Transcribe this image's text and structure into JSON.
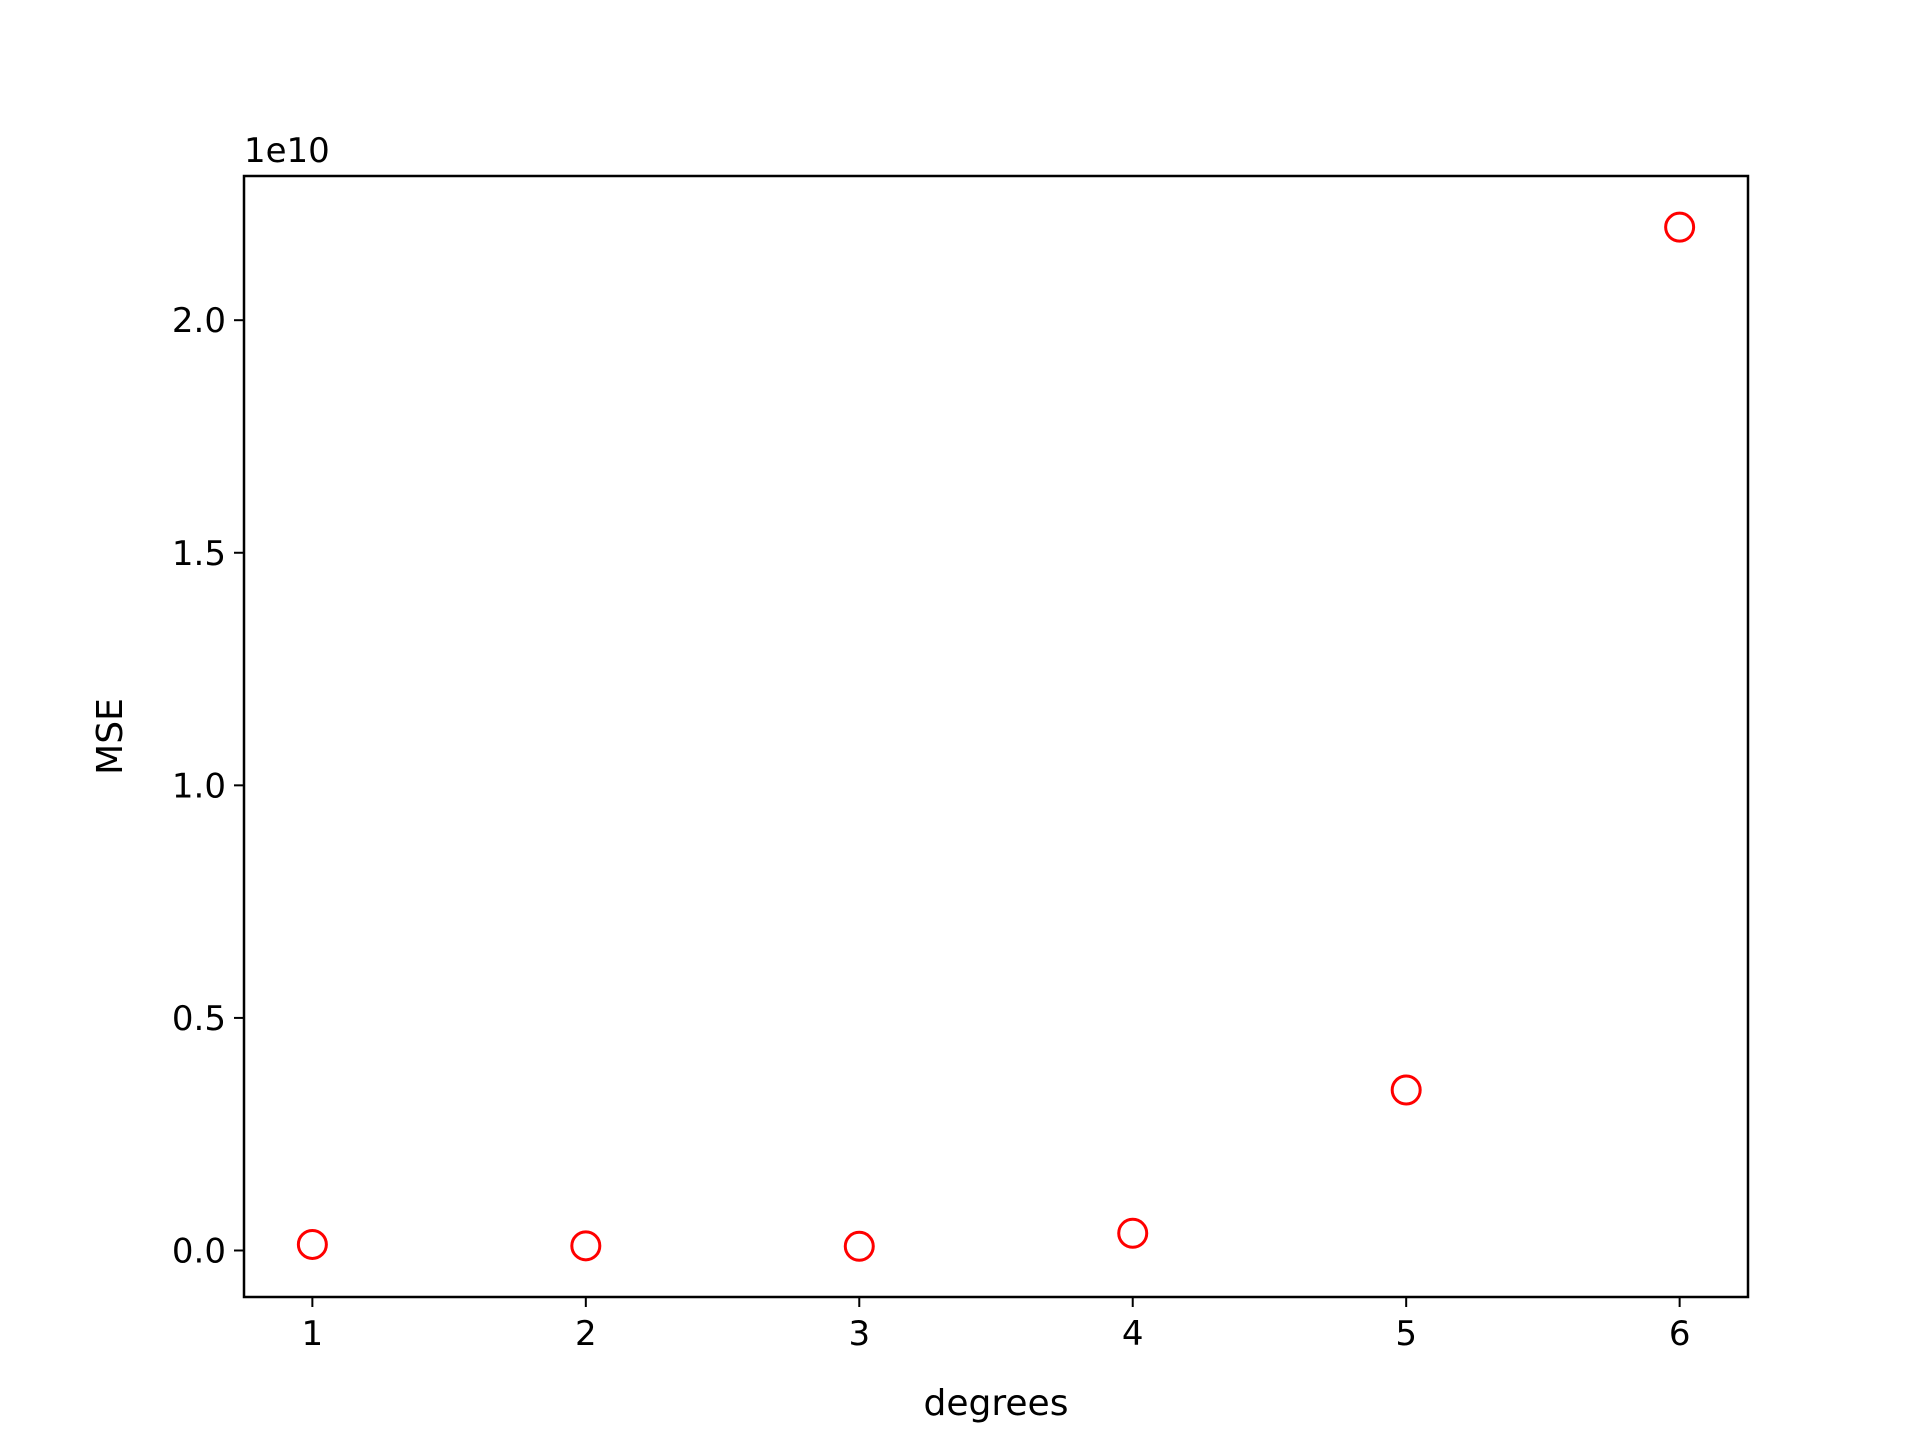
{
  "chart_data": {
    "type": "scatter",
    "xlabel": "degrees",
    "ylabel": "MSE",
    "y_offset_text": "1e10",
    "x": [
      1,
      2,
      3,
      4,
      5,
      6
    ],
    "y": [
      0.013,
      0.01,
      0.009,
      0.037,
      0.345,
      2.2
    ],
    "y_scale_multiplier": 10000000000,
    "xlim": [
      0.75,
      6.25
    ],
    "ylim": [
      -0.1,
      2.31
    ],
    "x_ticks": [
      1,
      2,
      3,
      4,
      5,
      6
    ],
    "x_tick_labels": [
      "1",
      "2",
      "3",
      "4",
      "5",
      "6"
    ],
    "y_ticks": [
      0.0,
      0.5,
      1.0,
      1.5,
      2.0
    ],
    "y_tick_labels": [
      "0.0",
      "0.5",
      "1.0",
      "1.5",
      "2.0"
    ],
    "marker": "open-circle",
    "marker_color": "#ff0000",
    "grid": false,
    "legend": false
  }
}
